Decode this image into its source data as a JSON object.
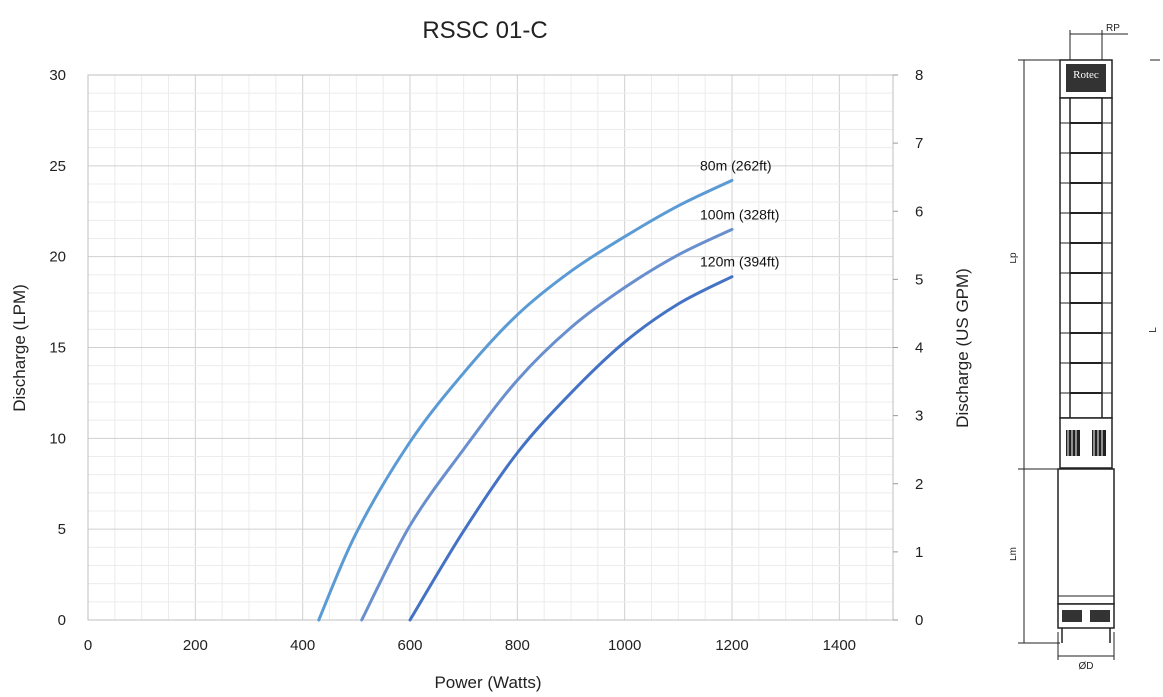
{
  "chart_data": {
    "type": "line",
    "title": "RSSC 01-C",
    "xlabel": "Power (Watts)",
    "ylabel": "Discharge (LPM)",
    "y2label": "Discharge (US GPM)",
    "xlim": [
      0,
      1500
    ],
    "ylim": [
      0,
      30
    ],
    "y2lim": [
      0,
      8
    ],
    "x_ticks": [
      "0",
      "200",
      "400",
      "600",
      "800",
      "1000",
      "1200",
      "1400"
    ],
    "y_ticks": [
      "0",
      "5",
      "10",
      "15",
      "20",
      "25",
      "30"
    ],
    "y2_ticks": [
      "0",
      "1",
      "2",
      "3",
      "4",
      "5",
      "6",
      "7",
      "8"
    ],
    "grid": true,
    "series": [
      {
        "name": "80m (262ft)",
        "color": "#5b9bd5",
        "x": [
          430,
          500,
          600,
          700,
          800,
          900,
          1000,
          1100,
          1200
        ],
        "y": [
          0,
          4.8,
          9.8,
          13.6,
          16.8,
          19.2,
          21.1,
          22.8,
          24.2
        ]
      },
      {
        "name": "100m (328ft)",
        "color": "#6a8fce",
        "x": [
          510,
          600,
          700,
          800,
          900,
          1000,
          1100,
          1200
        ],
        "y": [
          0,
          5.2,
          9.4,
          13.2,
          16.1,
          18.3,
          20.1,
          21.5
        ]
      },
      {
        "name": "120m (394ft)",
        "color": "#4472c4",
        "x": [
          600,
          700,
          800,
          900,
          1000,
          1100,
          1200
        ],
        "y": [
          0,
          4.9,
          9.2,
          12.5,
          15.3,
          17.4,
          18.9
        ]
      }
    ]
  },
  "diagram": {
    "labels": {
      "rp": "RP",
      "lp": "Lp",
      "lm": "Lm",
      "l": "L",
      "od": "ØD"
    },
    "logo_text": "Rotec"
  }
}
